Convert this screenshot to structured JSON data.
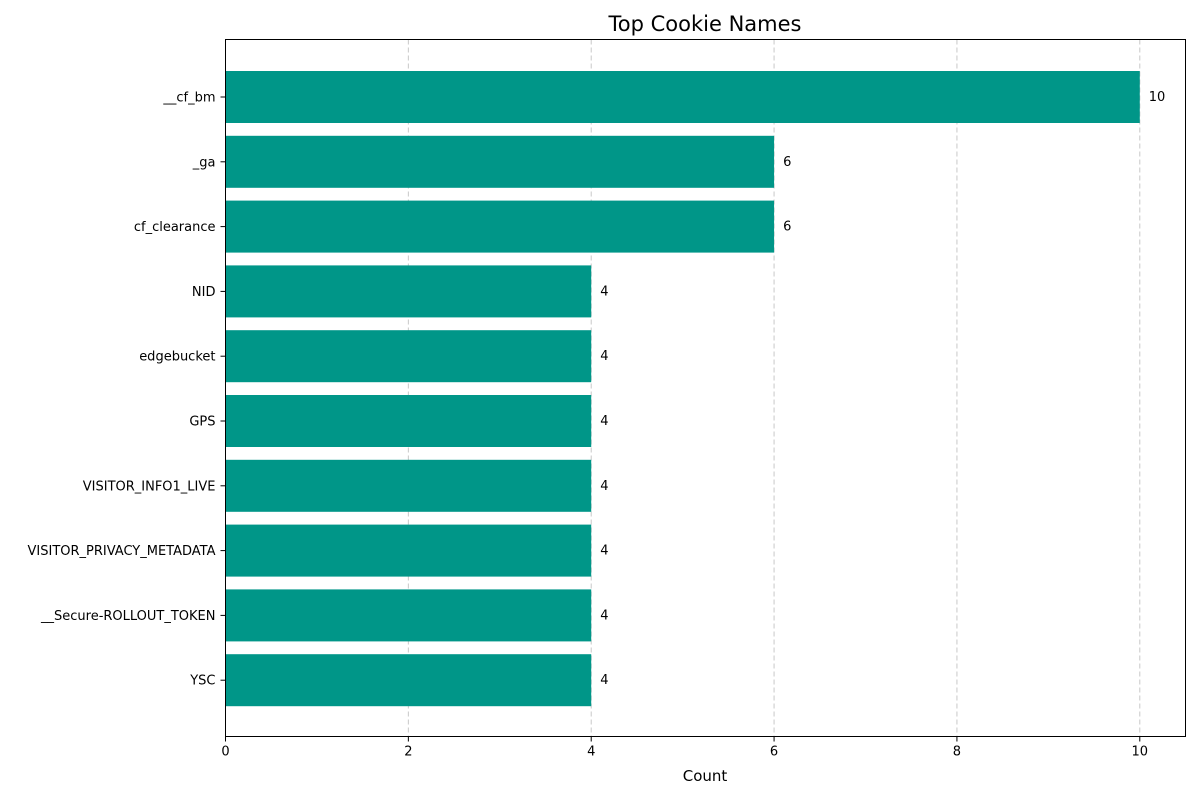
{
  "chart_data": {
    "type": "bar",
    "orientation": "horizontal",
    "title": "Top Cookie Names",
    "xlabel": "Count",
    "ylabel": "",
    "categories": [
      "__cf_bm",
      "_ga",
      "cf_clearance",
      "NID",
      "edgebucket",
      "GPS",
      "VISITOR_INFO1_LIVE",
      "VISITOR_PRIVACY_METADATA",
      "__Secure-ROLLOUT_TOKEN",
      "YSC"
    ],
    "values": [
      10,
      6,
      6,
      4,
      4,
      4,
      4,
      4,
      4,
      4
    ],
    "data_labels": [
      "10",
      "6",
      "6",
      "4",
      "4",
      "4",
      "4",
      "4",
      "4",
      "4"
    ],
    "xlim": [
      0,
      10.5
    ],
    "xticks": [
      0,
      2,
      4,
      6,
      8,
      10
    ],
    "xtick_labels": [
      "0",
      "2",
      "4",
      "6",
      "8",
      "10"
    ],
    "grid": "x-axis dashed",
    "bar_color": "#009688",
    "grid_color": "#c8c8c8"
  }
}
